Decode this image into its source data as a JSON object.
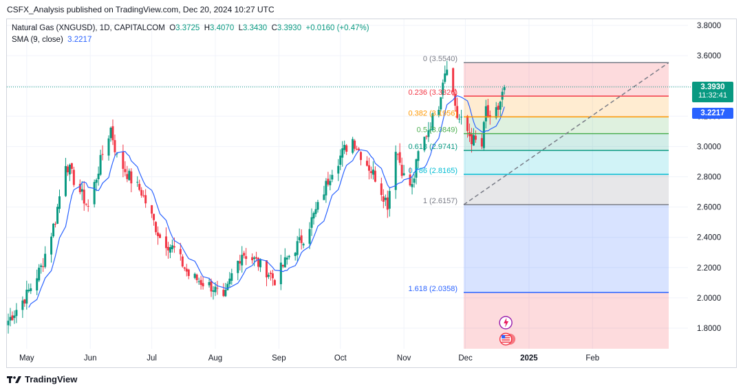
{
  "header": {
    "publisher_text": "CSFX_Analysis published on TradingView.com, Dec 20, 2024 10:27 UTC"
  },
  "legend": {
    "symbol": "Natural Gas (XNGUSD), 1D, CAPITALCOM",
    "o_label": "O",
    "o_value": "3.3725",
    "h_label": "H",
    "h_value": "3.4070",
    "l_label": "L",
    "l_value": "3.3430",
    "c_label": "C",
    "c_value": "3.3930",
    "change": "+0.0160 (+0.47%)",
    "sma_label": "SMA (9, close)",
    "sma_value": "3.2217"
  },
  "price_badge": {
    "price": "3.3930",
    "countdown": "11:32:41",
    "color": "#089981"
  },
  "sma_badge": {
    "value": "3.2217",
    "color": "#2962ff"
  },
  "footer": {
    "brand": "TradingView",
    "logo_icon": "tradingview-logo-icon"
  },
  "event_icons": [
    "lightning-event-icon",
    "us-flag-event-icon"
  ],
  "chart_data": {
    "type": "candlestick",
    "symbol": "XNGUSD",
    "timeframe": "1D",
    "ylim": [
      1.65,
      3.85
    ],
    "y_ticks": [
      "3.8000",
      "3.6000",
      "3.4000",
      "3.2000",
      "3.0000",
      "2.8000",
      "2.6000",
      "2.4000",
      "2.2000",
      "2.0000",
      "1.8000"
    ],
    "x_ticks": [
      "May",
      "Jun",
      "Jul",
      "Aug",
      "Sep",
      "Oct",
      "Nov",
      "Dec",
      "2025",
      "Feb"
    ],
    "grid": true,
    "colors": {
      "up": "#089981",
      "down": "#f23645",
      "sma": "#2962ff"
    },
    "price_anchors": [
      [
        "2024-04-22",
        1.85
      ],
      [
        "2024-05-01",
        2.02
      ],
      [
        "2024-05-08",
        2.2
      ],
      [
        "2024-05-15",
        2.52
      ],
      [
        "2024-05-20",
        2.9
      ],
      [
        "2024-05-24",
        2.78
      ],
      [
        "2024-05-31",
        2.6
      ],
      [
        "2024-06-07",
        2.95
      ],
      [
        "2024-06-11",
        3.12
      ],
      [
        "2024-06-14",
        2.93
      ],
      [
        "2024-06-21",
        2.78
      ],
      [
        "2024-06-26",
        2.7
      ],
      [
        "2024-07-05",
        2.4
      ],
      [
        "2024-07-12",
        2.32
      ],
      [
        "2024-07-19",
        2.15
      ],
      [
        "2024-07-26",
        2.1
      ],
      [
        "2024-07-31",
        2.07
      ],
      [
        "2024-08-05",
        1.97
      ],
      [
        "2024-08-09",
        2.15
      ],
      [
        "2024-08-14",
        2.3
      ],
      [
        "2024-08-20",
        2.25
      ],
      [
        "2024-08-26",
        2.18
      ],
      [
        "2024-08-30",
        2.12
      ],
      [
        "2024-09-06",
        2.28
      ],
      [
        "2024-09-13",
        2.4
      ],
      [
        "2024-09-20",
        2.6
      ],
      [
        "2024-09-27",
        2.85
      ],
      [
        "2024-10-03",
        2.98
      ],
      [
        "2024-10-07",
        3.05
      ],
      [
        "2024-10-11",
        2.95
      ],
      [
        "2024-10-18",
        2.8
      ],
      [
        "2024-10-24",
        2.62
      ],
      [
        "2024-10-28",
        3.0
      ],
      [
        "2024-11-01",
        2.8
      ],
      [
        "2024-11-05",
        2.73
      ],
      [
        "2024-11-08",
        2.95
      ],
      [
        "2024-11-13",
        3.12
      ],
      [
        "2024-11-18",
        3.28
      ],
      [
        "2024-11-20",
        3.45
      ],
      [
        "2024-11-22",
        3.55
      ],
      [
        "2024-11-25",
        3.35
      ],
      [
        "2024-11-27",
        3.2
      ],
      [
        "2024-12-02",
        3.1
      ],
      [
        "2024-12-04",
        3.05
      ],
      [
        "2024-12-09",
        3.0
      ],
      [
        "2024-12-11",
        3.25
      ],
      [
        "2024-12-13",
        3.15
      ],
      [
        "2024-12-17",
        3.25
      ],
      [
        "2024-12-20",
        3.39
      ]
    ],
    "fibonacci": [
      {
        "ratio": "0",
        "price": "3.5540",
        "color": "#787b86"
      },
      {
        "ratio": "0.236",
        "price": "3.3326",
        "color": "#f23645"
      },
      {
        "ratio": "0.382",
        "price": "3.1956",
        "color": "#ff9800"
      },
      {
        "ratio": "0.5",
        "price": "3.0849",
        "color": "#4caf50"
      },
      {
        "ratio": "0.618",
        "price": "2.9741",
        "color": "#089981"
      },
      {
        "ratio": "0.786",
        "price": "2.8165",
        "color": "#00bcd4"
      },
      {
        "ratio": "1",
        "price": "2.6157",
        "color": "#787b86"
      },
      {
        "ratio": "1.618",
        "price": "2.0358",
        "color": "#2962ff"
      }
    ],
    "last_price": 3.393,
    "sma_last": 3.2217
  }
}
